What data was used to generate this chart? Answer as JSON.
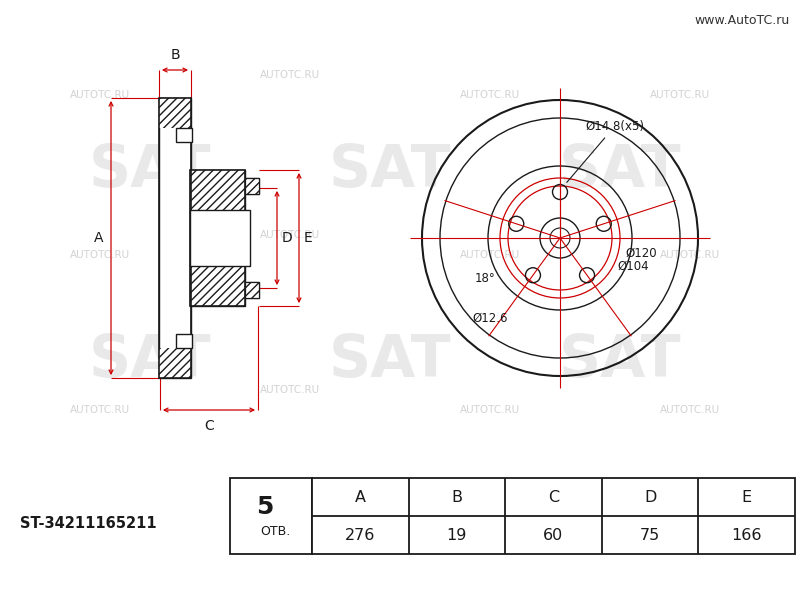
{
  "bg_color": "#ffffff",
  "line_color": "#1a1a1a",
  "red_color": "#cc0000",
  "part_number": "ST-34211165211",
  "holes_label_num": "5",
  "holes_label_txt": "ОТВ.",
  "dim_labels": [
    "A",
    "B",
    "C",
    "D",
    "E"
  ],
  "dim_values": [
    "276",
    "19",
    "60",
    "75",
    "166"
  ],
  "label_d1": "Ø14.8(x5)",
  "label_18": "18°",
  "label_d126": "Ø12.6",
  "label_d120": "Ø120",
  "label_d104": "Ø104",
  "website": "www.AutoTC.ru"
}
